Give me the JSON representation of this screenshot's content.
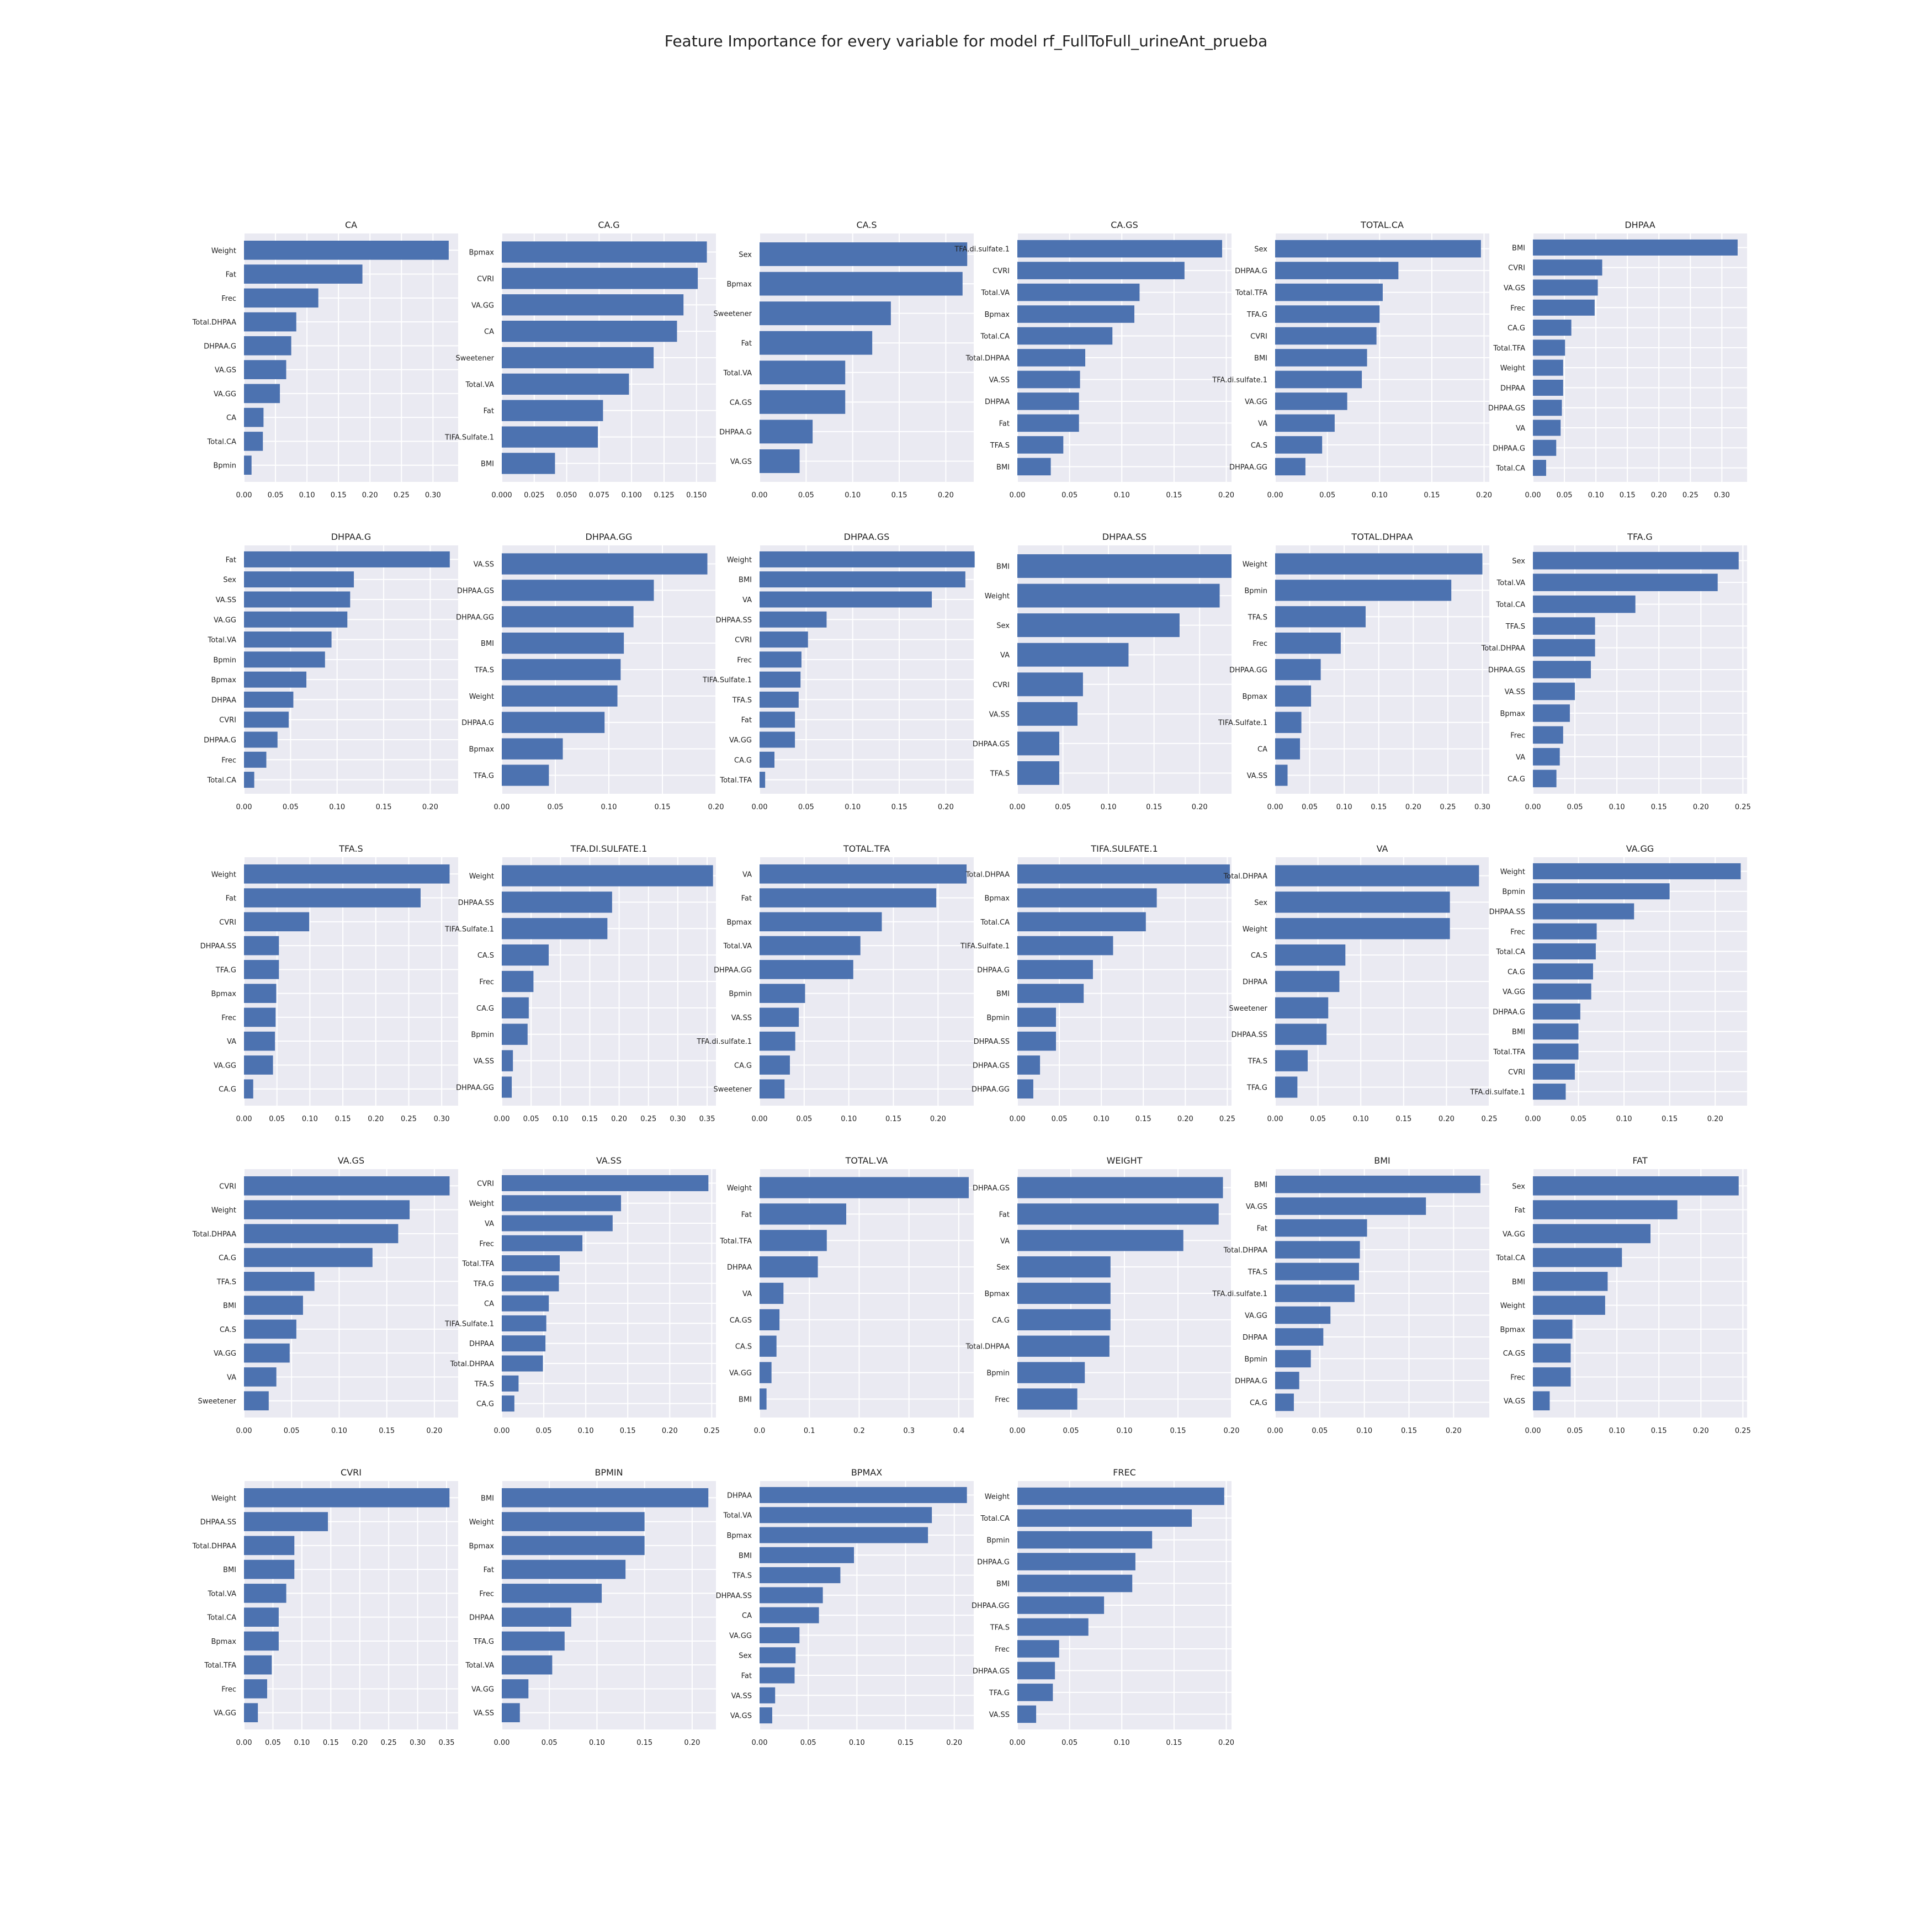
{
  "suptitle": "Feature Importance for every variable for model rf_FullToFull_urineAnt_prueba",
  "style": {
    "bar_color": "#4c72b0",
    "panel_background": "#eaeaf2",
    "grid_color": "#ffffff",
    "text_color": "#222222"
  },
  "chart_data": [
    {
      "type": "bar",
      "orientation": "horizontal",
      "title": "CA",
      "xlim": [
        0,
        0.34
      ],
      "xticks": [
        "0.00",
        "0.05",
        "0.10",
        "0.15",
        "0.20",
        "0.25",
        "0.30"
      ],
      "categories": [
        "Weight",
        "Fat",
        "Frec",
        "Total.DHPAA",
        "DHPAA.G",
        "VA.GS",
        "VA.GG",
        "CA",
        "Total.CA",
        "Bpmin"
      ],
      "values": [
        0.325,
        0.188,
        0.118,
        0.083,
        0.075,
        0.067,
        0.057,
        0.031,
        0.03,
        0.012
      ]
    },
    {
      "type": "bar",
      "orientation": "horizontal",
      "title": "CA.G",
      "xlim": [
        0,
        0.165
      ],
      "xticks": [
        "0.000",
        "0.025",
        "0.050",
        "0.075",
        "0.100",
        "0.125",
        "0.150"
      ],
      "categories": [
        "Bpmax",
        "CVRI",
        "VA.GG",
        "CA",
        "Sweetener",
        "Total.VA",
        "Fat",
        "TIFA.Sulfate.1",
        "BMI"
      ],
      "values": [
        0.158,
        0.151,
        0.14,
        0.135,
        0.117,
        0.098,
        0.078,
        0.074,
        0.041
      ]
    },
    {
      "type": "bar",
      "orientation": "horizontal",
      "title": "CA.S",
      "xlim": [
        0,
        0.23
      ],
      "xticks": [
        "0.00",
        "0.05",
        "0.10",
        "0.15",
        "0.20"
      ],
      "categories": [
        "Sex",
        "Bpmax",
        "Sweetener",
        "Fat",
        "Total.VA",
        "CA.GS",
        "DHPAA.G",
        "VA.GS"
      ],
      "values": [
        0.223,
        0.218,
        0.141,
        0.121,
        0.092,
        0.092,
        0.057,
        0.043
      ]
    },
    {
      "type": "bar",
      "orientation": "horizontal",
      "title": "CA.GS",
      "xlim": [
        0,
        0.205
      ],
      "xticks": [
        "0.00",
        "0.05",
        "0.10",
        "0.15",
        "0.20"
      ],
      "categories": [
        "TFA.di.sulfate.1",
        "CVRI",
        "Total.VA",
        "Bpmax",
        "Total.CA",
        "Total.DHPAA",
        "VA.SS",
        "DHPAA",
        "Fat",
        "TFA.S",
        "BMI"
      ],
      "values": [
        0.196,
        0.16,
        0.117,
        0.112,
        0.091,
        0.065,
        0.06,
        0.059,
        0.059,
        0.044,
        0.032
      ]
    },
    {
      "type": "bar",
      "orientation": "horizontal",
      "title": "TOTAL.CA",
      "xlim": [
        0,
        0.205
      ],
      "xticks": [
        "0.00",
        "0.05",
        "0.10",
        "0.15",
        "0.20"
      ],
      "categories": [
        "Sex",
        "DHPAA.G",
        "Total.TFA",
        "TFA.G",
        "CVRI",
        "BMI",
        "TFA.di.sulfate.1",
        "VA.GG",
        "VA",
        "CA.S",
        "DHPAA.GG"
      ],
      "values": [
        0.197,
        0.118,
        0.103,
        0.1,
        0.097,
        0.088,
        0.083,
        0.069,
        0.057,
        0.045,
        0.029
      ]
    },
    {
      "type": "bar",
      "orientation": "horizontal",
      "title": "DHPAA",
      "xlim": [
        0,
        0.34
      ],
      "xticks": [
        "0.00",
        "0.05",
        "0.10",
        "0.15",
        "0.20",
        "0.25",
        "0.30"
      ],
      "categories": [
        "BMI",
        "CVRI",
        "VA.GS",
        "Frec",
        "CA.G",
        "Total.TFA",
        "Weight",
        "DHPAA",
        "DHPAA.GS",
        "VA",
        "DHPAA.G",
        "Total.CA"
      ],
      "values": [
        0.325,
        0.11,
        0.103,
        0.098,
        0.061,
        0.051,
        0.048,
        0.048,
        0.046,
        0.044,
        0.037,
        0.021
      ]
    },
    {
      "type": "bar",
      "orientation": "horizontal",
      "title": "DHPAA.G",
      "xlim": [
        0,
        0.23
      ],
      "xticks": [
        "0.00",
        "0.05",
        "0.10",
        "0.15",
        "0.20"
      ],
      "categories": [
        "Fat",
        "Sex",
        "VA.SS",
        "VA.GG",
        "Total.VA",
        "Bpmin",
        "Bpmax",
        "DHPAA",
        "CVRI",
        "DHPAA.G",
        "Frec",
        "Total.CA"
      ],
      "values": [
        0.221,
        0.118,
        0.114,
        0.111,
        0.094,
        0.087,
        0.067,
        0.053,
        0.048,
        0.036,
        0.024,
        0.011
      ]
    },
    {
      "type": "bar",
      "orientation": "horizontal",
      "title": "DHPAA.GG",
      "xlim": [
        0,
        0.2
      ],
      "xticks": [
        "0.00",
        "0.05",
        "0.10",
        "0.15",
        "0.20"
      ],
      "categories": [
        "VA.SS",
        "DHPAA.GS",
        "DHPAA.GG",
        "BMI",
        "TFA.S",
        "Weight",
        "DHPAA.G",
        "Bpmax",
        "TFA.G"
      ],
      "values": [
        0.192,
        0.142,
        0.123,
        0.114,
        0.111,
        0.108,
        0.096,
        0.057,
        0.044
      ]
    },
    {
      "type": "bar",
      "orientation": "horizontal",
      "title": "DHPAA.GS",
      "xlim": [
        0,
        0.23
      ],
      "xticks": [
        "0.00",
        "0.05",
        "0.10",
        "0.15",
        "0.20"
      ],
      "categories": [
        "Weight",
        "BMI",
        "VA",
        "DHPAA.SS",
        "CVRI",
        "Frec",
        "TIFA.Sulfate.1",
        "TFA.S",
        "Fat",
        "VA.GG",
        "CA.G",
        "Total.TFA"
      ],
      "values": [
        0.231,
        0.221,
        0.185,
        0.072,
        0.052,
        0.045,
        0.044,
        0.042,
        0.038,
        0.038,
        0.016,
        0.006
      ]
    },
    {
      "type": "bar",
      "orientation": "horizontal",
      "title": "DHPAA.SS",
      "xlim": [
        0,
        0.235
      ],
      "xticks": [
        "0.00",
        "0.05",
        "0.10",
        "0.15",
        "0.20"
      ],
      "categories": [
        "BMI",
        "Weight",
        "Sex",
        "VA",
        "CVRI",
        "VA.SS",
        "DHPAA.GS",
        "TFA.S"
      ],
      "values": [
        0.235,
        0.222,
        0.178,
        0.122,
        0.072,
        0.066,
        0.046,
        0.046
      ]
    },
    {
      "type": "bar",
      "orientation": "horizontal",
      "title": "TOTAL.DHPAA",
      "xlim": [
        0,
        0.31
      ],
      "xticks": [
        "0.00",
        "0.05",
        "0.10",
        "0.15",
        "0.20",
        "0.25",
        "0.30"
      ],
      "categories": [
        "Weight",
        "Bpmin",
        "TFA.S",
        "Frec",
        "DHPAA.GG",
        "Bpmax",
        "TIFA.Sulfate.1",
        "CA",
        "VA.SS"
      ],
      "values": [
        0.3,
        0.255,
        0.131,
        0.095,
        0.066,
        0.052,
        0.038,
        0.036,
        0.018
      ]
    },
    {
      "type": "bar",
      "orientation": "horizontal",
      "title": "TFA.G",
      "xlim": [
        0,
        0.255
      ],
      "xticks": [
        "0.00",
        "0.05",
        "0.10",
        "0.15",
        "0.20",
        "0.25"
      ],
      "categories": [
        "Sex",
        "Total.VA",
        "Total.CA",
        "TFA.S",
        "Total.DHPAA",
        "DHPAA.GS",
        "VA.SS",
        "Bpmax",
        "Frec",
        "VA",
        "CA.G"
      ],
      "values": [
        0.245,
        0.22,
        0.122,
        0.074,
        0.074,
        0.069,
        0.05,
        0.044,
        0.036,
        0.032,
        0.028
      ]
    },
    {
      "type": "bar",
      "orientation": "horizontal",
      "title": "TFA.S",
      "xlim": [
        0,
        0.325
      ],
      "xticks": [
        "0.00",
        "0.05",
        "0.10",
        "0.15",
        "0.20",
        "0.25",
        "0.30"
      ],
      "categories": [
        "Weight",
        "Fat",
        "CVRI",
        "DHPAA.SS",
        "TFA.G",
        "Bpmax",
        "Frec",
        "VA",
        "VA.GG",
        "CA.G"
      ],
      "values": [
        0.312,
        0.268,
        0.099,
        0.053,
        0.053,
        0.049,
        0.048,
        0.047,
        0.044,
        0.014
      ]
    },
    {
      "type": "bar",
      "orientation": "horizontal",
      "title": "TFA.DI.SULFATE.1",
      "xlim": [
        0,
        0.365
      ],
      "xticks": [
        "0.00",
        "0.05",
        "0.10",
        "0.15",
        "0.20",
        "0.25",
        "0.30",
        "0.35"
      ],
      "categories": [
        "Weight",
        "DHPAA.SS",
        "TIFA.Sulfate.1",
        "CA.S",
        "Frec",
        "CA.G",
        "Bpmin",
        "VA.SS",
        "DHPAA.GG"
      ],
      "values": [
        0.36,
        0.188,
        0.18,
        0.08,
        0.054,
        0.046,
        0.044,
        0.019,
        0.017
      ]
    },
    {
      "type": "bar",
      "orientation": "horizontal",
      "title": "TOTAL.TFA",
      "xlim": [
        0,
        0.24
      ],
      "xticks": [
        "0.00",
        "0.05",
        "0.10",
        "0.15",
        "0.20"
      ],
      "categories": [
        "VA",
        "Fat",
        "Bpmax",
        "Total.VA",
        "DHPAA.GG",
        "Bpmin",
        "VA.SS",
        "TFA.di.sulfate.1",
        "CA.G",
        "Sweetener"
      ],
      "values": [
        0.232,
        0.198,
        0.137,
        0.113,
        0.105,
        0.051,
        0.044,
        0.04,
        0.034,
        0.028
      ]
    },
    {
      "type": "bar",
      "orientation": "horizontal",
      "title": "TIFA.SULFATE.1",
      "xlim": [
        0,
        0.255
      ],
      "xticks": [
        "0.00",
        "0.05",
        "0.10",
        "0.15",
        "0.20",
        "0.25"
      ],
      "categories": [
        "Total.DHPAA",
        "Bpmax",
        "Total.CA",
        "TIFA.Sulfate.1",
        "DHPAA.G",
        "BMI",
        "Bpmin",
        "DHPAA.SS",
        "DHPAA.GS",
        "DHPAA.GG"
      ],
      "values": [
        0.253,
        0.166,
        0.153,
        0.114,
        0.09,
        0.079,
        0.046,
        0.046,
        0.027,
        0.019
      ]
    },
    {
      "type": "bar",
      "orientation": "horizontal",
      "title": "VA",
      "xlim": [
        0,
        0.25
      ],
      "xticks": [
        "0.00",
        "0.05",
        "0.10",
        "0.15",
        "0.20",
        "0.25"
      ],
      "categories": [
        "Total.DHPAA",
        "Sex",
        "Weight",
        "CA.S",
        "DHPAA",
        "Sweetener",
        "DHPAA.SS",
        "TFA.S",
        "TFA.G"
      ],
      "values": [
        0.238,
        0.204,
        0.204,
        0.082,
        0.075,
        0.062,
        0.06,
        0.038,
        0.026
      ]
    },
    {
      "type": "bar",
      "orientation": "horizontal",
      "title": "VA.GG",
      "xlim": [
        0,
        0.235
      ],
      "xticks": [
        "0.00",
        "0.05",
        "0.10",
        "0.15",
        "0.20"
      ],
      "categories": [
        "Weight",
        "Bpmin",
        "DHPAA.SS",
        "Frec",
        "Total.CA",
        "CA.G",
        "VA.GG",
        "DHPAA.G",
        "BMI",
        "Total.TFA",
        "CVRI",
        "TFA.di.sulfate.1"
      ],
      "values": [
        0.228,
        0.15,
        0.111,
        0.07,
        0.069,
        0.066,
        0.064,
        0.052,
        0.05,
        0.05,
        0.046,
        0.036
      ]
    },
    {
      "type": "bar",
      "orientation": "horizontal",
      "title": "VA.GS",
      "xlim": [
        0,
        0.225
      ],
      "xticks": [
        "0.00",
        "0.05",
        "0.10",
        "0.15",
        "0.20"
      ],
      "categories": [
        "CVRI",
        "Weight",
        "Total.DHPAA",
        "CA.G",
        "TFA.S",
        "BMI",
        "CA.S",
        "VA.GG",
        "VA",
        "Sweetener"
      ],
      "values": [
        0.216,
        0.174,
        0.162,
        0.135,
        0.074,
        0.062,
        0.055,
        0.048,
        0.034,
        0.026
      ]
    },
    {
      "type": "bar",
      "orientation": "horizontal",
      "title": "VA.SS",
      "xlim": [
        0,
        0.255
      ],
      "xticks": [
        "0.00",
        "0.05",
        "0.10",
        "0.15",
        "0.20",
        "0.25"
      ],
      "categories": [
        "CVRI",
        "Weight",
        "VA",
        "Frec",
        "Total.TFA",
        "TFA.G",
        "CA",
        "TIFA.Sulfate.1",
        "DHPAA",
        "Total.DHPAA",
        "TFA.S",
        "CA.G"
      ],
      "values": [
        0.246,
        0.142,
        0.132,
        0.096,
        0.069,
        0.068,
        0.056,
        0.053,
        0.052,
        0.049,
        0.02,
        0.015
      ]
    },
    {
      "type": "bar",
      "orientation": "horizontal",
      "title": "TOTAL.VA",
      "xlim": [
        0,
        0.43
      ],
      "xticks": [
        "0.0",
        "0.1",
        "0.2",
        "0.3",
        "0.4"
      ],
      "categories": [
        "Weight",
        "Fat",
        "Total.TFA",
        "DHPAA",
        "VA",
        "CA.GS",
        "CA.S",
        "VA.GG",
        "BMI"
      ],
      "values": [
        0.42,
        0.174,
        0.135,
        0.117,
        0.048,
        0.04,
        0.034,
        0.024,
        0.014
      ]
    },
    {
      "type": "bar",
      "orientation": "horizontal",
      "title": "WEIGHT",
      "xlim": [
        0,
        0.2
      ],
      "xticks": [
        "0.00",
        "0.05",
        "0.10",
        "0.15",
        "0.20"
      ],
      "categories": [
        "DHPAA.GS",
        "Fat",
        "VA",
        "Sex",
        "Bpmax",
        "CA.G",
        "Total.DHPAA",
        "Bpmin",
        "Frec"
      ],
      "values": [
        0.192,
        0.188,
        0.155,
        0.087,
        0.087,
        0.087,
        0.086,
        0.063,
        0.056
      ]
    },
    {
      "type": "bar",
      "orientation": "horizontal",
      "title": "BMI",
      "xlim": [
        0,
        0.24
      ],
      "xticks": [
        "0.00",
        "0.05",
        "0.10",
        "0.15",
        "0.20"
      ],
      "categories": [
        "BMI",
        "VA.GS",
        "Fat",
        "Total.DHPAA",
        "TFA.S",
        "TFA.di.sulfate.1",
        "VA.GG",
        "DHPAA",
        "Bpmin",
        "DHPAA.G",
        "CA.G"
      ],
      "values": [
        0.23,
        0.169,
        0.103,
        0.095,
        0.094,
        0.089,
        0.062,
        0.054,
        0.04,
        0.027,
        0.021
      ]
    },
    {
      "type": "bar",
      "orientation": "horizontal",
      "title": "FAT",
      "xlim": [
        0,
        0.255
      ],
      "xticks": [
        "0.00",
        "0.05",
        "0.10",
        "0.15",
        "0.20",
        "0.25"
      ],
      "categories": [
        "Sex",
        "Fat",
        "VA.GG",
        "Total.CA",
        "BMI",
        "Weight",
        "Bpmax",
        "CA.GS",
        "Frec",
        "VA.GS"
      ],
      "values": [
        0.245,
        0.172,
        0.14,
        0.106,
        0.089,
        0.086,
        0.047,
        0.045,
        0.045,
        0.02
      ]
    },
    {
      "type": "bar",
      "orientation": "horizontal",
      "title": "CVRI",
      "xlim": [
        0,
        0.37
      ],
      "xticks": [
        "0.00",
        "0.05",
        "0.10",
        "0.15",
        "0.20",
        "0.25",
        "0.30",
        "0.35"
      ],
      "categories": [
        "Weight",
        "DHPAA.SS",
        "Total.DHPAA",
        "BMI",
        "Total.VA",
        "Total.CA",
        "Bpmax",
        "Total.TFA",
        "Frec",
        "VA.GG"
      ],
      "values": [
        0.355,
        0.145,
        0.087,
        0.087,
        0.073,
        0.06,
        0.06,
        0.048,
        0.04,
        0.024
      ]
    },
    {
      "type": "bar",
      "orientation": "horizontal",
      "title": "BPMIN",
      "xlim": [
        0,
        0.225
      ],
      "xticks": [
        "0.00",
        "0.05",
        "0.10",
        "0.15",
        "0.20"
      ],
      "categories": [
        "BMI",
        "Weight",
        "Bpmax",
        "Fat",
        "Frec",
        "DHPAA",
        "TFA.G",
        "Total.VA",
        "VA.GG",
        "VA.SS"
      ],
      "values": [
        0.217,
        0.15,
        0.15,
        0.13,
        0.105,
        0.073,
        0.066,
        0.053,
        0.028,
        0.019
      ]
    },
    {
      "type": "bar",
      "orientation": "horizontal",
      "title": "BPMAX",
      "xlim": [
        0,
        0.22
      ],
      "xticks": [
        "0.00",
        "0.05",
        "0.10",
        "0.15",
        "0.20"
      ],
      "categories": [
        "DHPAA",
        "Total.VA",
        "Bpmax",
        "BMI",
        "TFA.S",
        "DHPAA.SS",
        "CA",
        "VA.GG",
        "Sex",
        "Fat",
        "VA.SS",
        "VA.GS"
      ],
      "values": [
        0.213,
        0.177,
        0.173,
        0.097,
        0.083,
        0.065,
        0.061,
        0.041,
        0.037,
        0.036,
        0.016,
        0.013
      ]
    },
    {
      "type": "bar",
      "orientation": "horizontal",
      "title": "FREC",
      "xlim": [
        0,
        0.205
      ],
      "xticks": [
        "0.00",
        "0.05",
        "0.10",
        "0.15",
        "0.20"
      ],
      "categories": [
        "Weight",
        "Total.CA",
        "Bpmin",
        "DHPAA.G",
        "BMI",
        "DHPAA.GG",
        "TFA.S",
        "Frec",
        "DHPAA.GS",
        "TFA.G",
        "VA.SS"
      ],
      "values": [
        0.198,
        0.167,
        0.129,
        0.113,
        0.11,
        0.083,
        0.068,
        0.04,
        0.036,
        0.034,
        0.018
      ]
    }
  ]
}
